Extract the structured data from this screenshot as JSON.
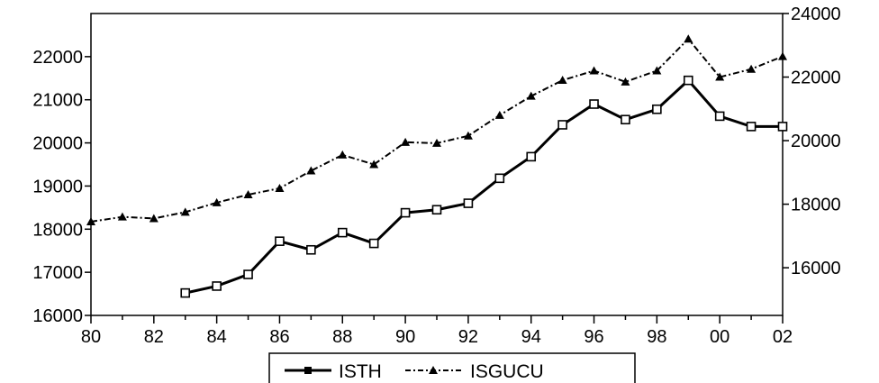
{
  "chart_data": {
    "type": "line",
    "title": "",
    "xlabel": "",
    "ylabel": "",
    "x_tick_labels": [
      "80",
      "82",
      "84",
      "86",
      "88",
      "90",
      "92",
      "94",
      "96",
      "98",
      "00",
      "02"
    ],
    "x": [
      1980,
      1981,
      1982,
      1983,
      1984,
      1985,
      1986,
      1987,
      1988,
      1989,
      1990,
      1991,
      1992,
      1993,
      1994,
      1995,
      1996,
      1997,
      1998,
      1999,
      2000,
      2001,
      2002
    ],
    "xlim": [
      1980,
      2002
    ],
    "y_left": {
      "ylim": [
        16000,
        23000
      ],
      "ticks": [
        16000,
        17000,
        18000,
        19000,
        20000,
        21000,
        22000
      ]
    },
    "y_right": {
      "ylim": [
        14500,
        24000
      ],
      "ticks": [
        16000,
        18000,
        20000,
        22000,
        24000
      ]
    },
    "series": [
      {
        "name": "ISTH",
        "axis": "left",
        "style": "solid",
        "marker": "square-open",
        "values": [
          null,
          null,
          null,
          16520,
          16680,
          16950,
          17720,
          17520,
          17920,
          17670,
          18380,
          18450,
          18600,
          19180,
          19680,
          20420,
          20900,
          20540,
          20780,
          21450,
          20620,
          20380,
          20380
        ]
      },
      {
        "name": "ISGUCU",
        "axis": "right",
        "style": "dash-dot",
        "marker": "triangle",
        "values": [
          17450,
          17600,
          17550,
          17750,
          18050,
          18300,
          18500,
          19050,
          19550,
          19250,
          19950,
          19920,
          20150,
          20800,
          21400,
          21900,
          22200,
          21850,
          22200,
          23200,
          22000,
          22250,
          22650
        ]
      }
    ],
    "legend": {
      "placement": "bottom-center"
    },
    "grid": false
  }
}
